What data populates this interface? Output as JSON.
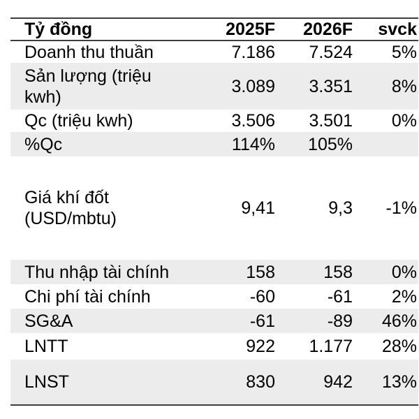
{
  "table": {
    "title_column": "Tỷ đồng",
    "columns": {
      "metric": "Tỷ đồng",
      "y2025": "2025F",
      "y2026": "2026F",
      "svck": "svck"
    },
    "rows": [
      {
        "label": "Doanh thu thuần",
        "y2025": "7.186",
        "y2026": "7.524",
        "svck": "5%"
      },
      {
        "label": "Sản lượng (triệu kwh)",
        "y2025": "3.089",
        "y2026": "3.351",
        "svck": "8%"
      },
      {
        "label": "Qc (triệu kwh)",
        "y2025": "3.506",
        "y2026": "3.501",
        "svck": "0%"
      },
      {
        "label": "%Qc",
        "y2025": "114%",
        "y2026": "105%",
        "svck": ""
      },
      {
        "label": "Giá khí đốt (USD/mbtu)",
        "y2025": "9,41",
        "y2026": "9,3",
        "svck": "-1%"
      },
      {
        "label": "Thu nhập tài chính",
        "y2025": "158",
        "y2026": "158",
        "svck": "0%"
      },
      {
        "label": "Chi phí tài chính",
        "y2025": "-60",
        "y2026": "-61",
        "svck": "2%"
      },
      {
        "label": "SG&A",
        "y2025": "-61",
        "y2026": "-89",
        "svck": "46%"
      },
      {
        "label": "LNTT",
        "y2025": "922",
        "y2026": "1.177",
        "svck": "28%"
      },
      {
        "label": "LNST",
        "y2025": "830",
        "y2026": "942",
        "svck": "13%"
      }
    ],
    "colors": {
      "row_alt_bg": "#ECECEC",
      "rule": "#3D3D3D",
      "text": "#000000",
      "page_bg": "#FFFFFF"
    }
  }
}
